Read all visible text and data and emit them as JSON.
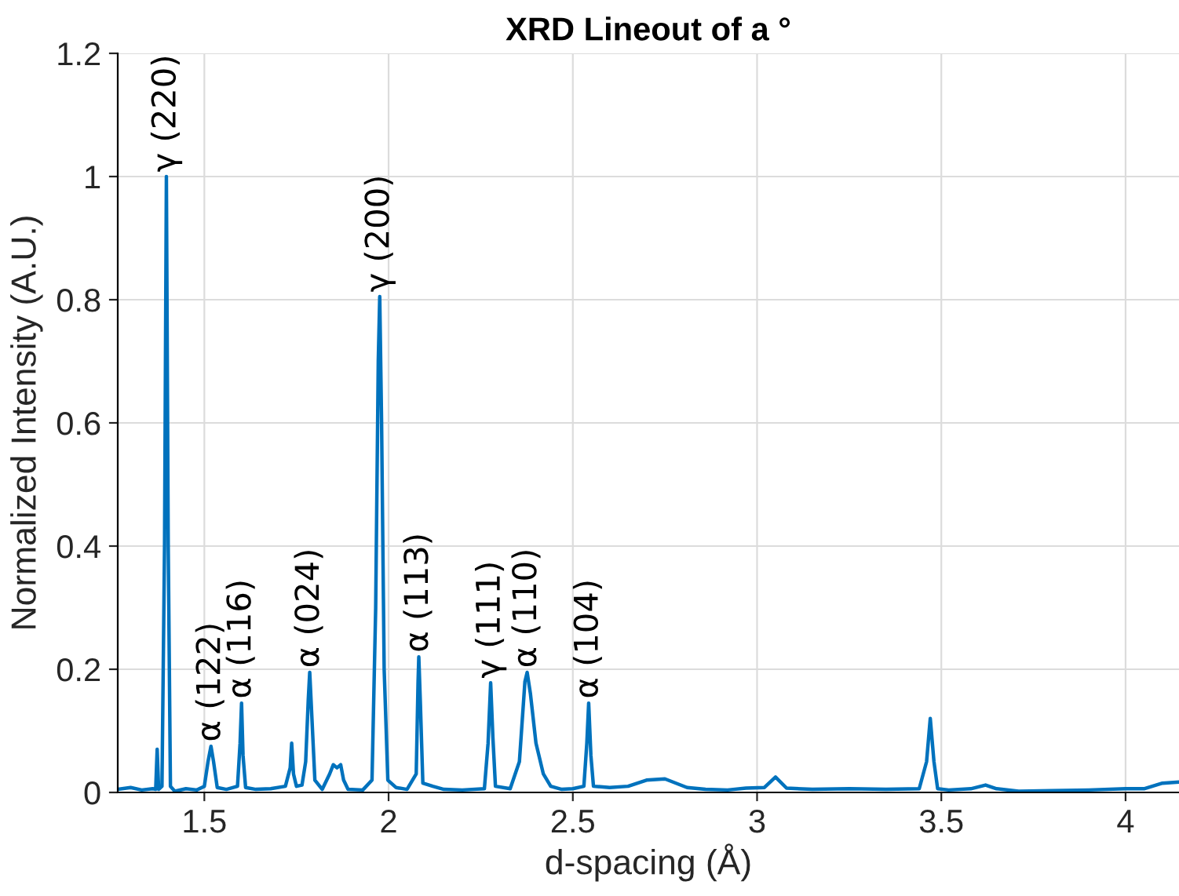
{
  "chart_data": {
    "type": "line",
    "title": "XRD Lineout of a °",
    "xlabel": "d-spacing (Å)",
    "ylabel": "Normalized Intensity (A.U.)",
    "xlim": [
      1.265,
      4.145
    ],
    "ylim": [
      0,
      1.2
    ],
    "xticks": [
      1.5,
      2,
      2.5,
      3,
      3.5,
      4
    ],
    "yticks": [
      0,
      0.2,
      0.4,
      0.6,
      0.8,
      1,
      1.2
    ],
    "grid": true,
    "line_style": "solid",
    "marker": "none",
    "series": [
      {
        "color": "#0072bd",
        "x": [
          1.265,
          1.3,
          1.33,
          1.36,
          1.368,
          1.372,
          1.376,
          1.385,
          1.392,
          1.397,
          1.402,
          1.408,
          1.42,
          1.45,
          1.48,
          1.5,
          1.51,
          1.518,
          1.525,
          1.535,
          1.56,
          1.59,
          1.597,
          1.601,
          1.605,
          1.612,
          1.64,
          1.68,
          1.72,
          1.733,
          1.737,
          1.742,
          1.75,
          1.765,
          1.775,
          1.782,
          1.786,
          1.792,
          1.8,
          1.82,
          1.84,
          1.85,
          1.86,
          1.87,
          1.878,
          1.89,
          1.93,
          1.955,
          1.965,
          1.972,
          1.976,
          1.981,
          1.988,
          1.998,
          2.02,
          2.05,
          2.075,
          2.08,
          2.082,
          2.086,
          2.093,
          2.12,
          2.15,
          2.2,
          2.26,
          2.27,
          2.277,
          2.283,
          2.29,
          2.33,
          2.355,
          2.37,
          2.376,
          2.385,
          2.4,
          2.42,
          2.44,
          2.47,
          2.5,
          2.53,
          2.538,
          2.543,
          2.549,
          2.556,
          2.6,
          2.65,
          2.7,
          2.75,
          2.78,
          2.81,
          2.86,
          2.92,
          2.97,
          3.02,
          3.05,
          3.08,
          3.15,
          3.25,
          3.35,
          3.44,
          3.46,
          3.47,
          3.48,
          3.49,
          3.52,
          3.58,
          3.62,
          3.65,
          3.71,
          3.8,
          3.9,
          4.0,
          4.05,
          4.1,
          4.145
        ],
        "values": [
          0.005,
          0.008,
          0.004,
          0.006,
          0.005,
          0.07,
          0.005,
          0.01,
          0.4,
          1.0,
          0.4,
          0.01,
          0.002,
          0.006,
          0.004,
          0.01,
          0.05,
          0.075,
          0.05,
          0.008,
          0.005,
          0.01,
          0.08,
          0.145,
          0.06,
          0.008,
          0.005,
          0.006,
          0.01,
          0.04,
          0.08,
          0.03,
          0.01,
          0.012,
          0.05,
          0.15,
          0.195,
          0.12,
          0.02,
          0.005,
          0.03,
          0.045,
          0.04,
          0.045,
          0.02,
          0.005,
          0.004,
          0.02,
          0.3,
          0.7,
          0.805,
          0.6,
          0.2,
          0.02,
          0.008,
          0.005,
          0.03,
          0.18,
          0.22,
          0.15,
          0.015,
          0.01,
          0.005,
          0.004,
          0.006,
          0.08,
          0.178,
          0.09,
          0.01,
          0.006,
          0.05,
          0.18,
          0.195,
          0.16,
          0.08,
          0.03,
          0.01,
          0.005,
          0.006,
          0.01,
          0.08,
          0.145,
          0.06,
          0.01,
          0.008,
          0.01,
          0.02,
          0.022,
          0.015,
          0.008,
          0.005,
          0.004,
          0.007,
          0.008,
          0.025,
          0.007,
          0.005,
          0.006,
          0.005,
          0.006,
          0.05,
          0.12,
          0.05,
          0.006,
          0.004,
          0.006,
          0.012,
          0.006,
          0.002,
          0.003,
          0.004,
          0.006,
          0.006,
          0.015,
          0.017
        ]
      }
    ],
    "annotations": [
      {
        "text": "γ (220)",
        "x": 1.397,
        "y": 1.0
      },
      {
        "text": "α (122)",
        "x": 1.518,
        "y": 0.075
      },
      {
        "text": "α (116)",
        "x": 1.601,
        "y": 0.145
      },
      {
        "text": "α (024)",
        "x": 1.786,
        "y": 0.195
      },
      {
        "text": "γ (200)",
        "x": 1.976,
        "y": 0.805
      },
      {
        "text": "α (113)",
        "x": 2.082,
        "y": 0.22
      },
      {
        "text": "γ (111)",
        "x": 2.277,
        "y": 0.178
      },
      {
        "text": "α (110)",
        "x": 2.376,
        "y": 0.195
      },
      {
        "text": "α (104)",
        "x": 2.543,
        "y": 0.145
      }
    ]
  }
}
